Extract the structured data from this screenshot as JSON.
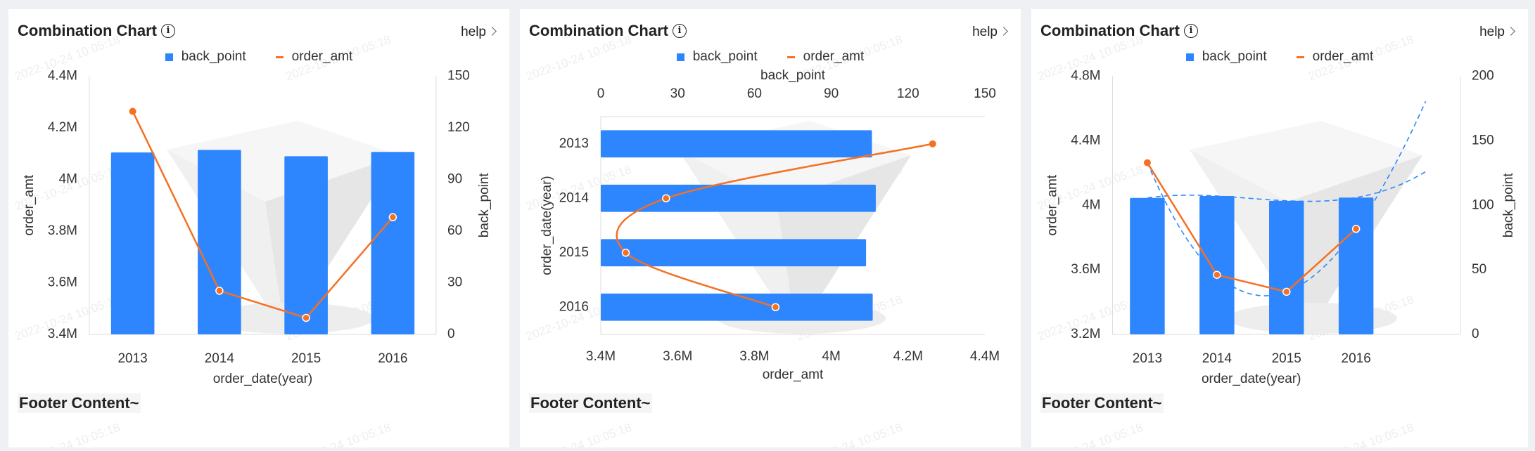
{
  "watermark": "2022-10-24 10:05:18",
  "colors": {
    "back_point": "#2e86ff",
    "order_amt": "#f57022",
    "trend": "#2e86ff",
    "axis": "#dcdcdc",
    "background": "#eef0f4"
  },
  "cards": [
    {
      "title": "Combination Chart",
      "info_icon": "info-circle-icon",
      "help": "help",
      "footer": "Footer Content~",
      "legend": [
        {
          "label": "back_point",
          "marker": "square"
        },
        {
          "label": "order_amt",
          "marker": "dash"
        }
      ]
    },
    {
      "title": "Combination Chart",
      "info_icon": "info-circle-icon",
      "help": "help",
      "footer": "Footer Content~",
      "legend": [
        {
          "label": "back_point",
          "marker": "square"
        },
        {
          "label": "order_amt",
          "marker": "dash"
        }
      ]
    },
    {
      "title": "Combination Chart",
      "info_icon": "info-circle-icon",
      "help": "help",
      "footer": "Footer Content~",
      "legend": [
        {
          "label": "back_point",
          "marker": "square"
        },
        {
          "label": "order_amt",
          "marker": "dash"
        }
      ]
    }
  ],
  "chart_data": [
    {
      "type": "bar+line",
      "orientation": "vertical",
      "title": "Combination Chart",
      "categories": [
        "2013",
        "2014",
        "2015",
        "2016"
      ],
      "xlabel": "order_date(year)",
      "ylabel_left": "order_amt",
      "ylabel_right": "back_point",
      "left_ylim": [
        3400000,
        4400000
      ],
      "left_ticks": [
        "3.4M",
        "3.6M",
        "3.8M",
        "4M",
        "4.2M",
        "4.4M"
      ],
      "right_ylim": [
        0,
        150
      ],
      "right_ticks": [
        "0",
        "30",
        "60",
        "90",
        "120",
        "150"
      ],
      "series": [
        {
          "name": "back_point",
          "type": "bar",
          "axis": "right",
          "values": [
            105.7,
            107.2,
            103.5,
            106.0
          ]
        },
        {
          "name": "order_amt",
          "type": "line",
          "axis": "left",
          "smooth": false,
          "values": [
            4264000,
            3569000,
            3464000,
            3854000
          ]
        }
      ],
      "legend": "top",
      "grid": false
    },
    {
      "type": "bar+line",
      "orientation": "horizontal",
      "title": "Combination Chart",
      "categories": [
        "2013",
        "2014",
        "2015",
        "2016"
      ],
      "ylabel": "order_date(year)",
      "xlabel_top": "back_point",
      "xlabel_bottom": "order_amt",
      "top_xlim": [
        0,
        150
      ],
      "top_ticks": [
        "0",
        "30",
        "60",
        "90",
        "120",
        "150"
      ],
      "bottom_xlim": [
        3400000,
        4400000
      ],
      "bottom_ticks": [
        "3.4M",
        "3.6M",
        "3.8M",
        "4M",
        "4.2M",
        "4.4M"
      ],
      "series": [
        {
          "name": "back_point",
          "type": "bar",
          "axis": "top",
          "values": [
            105.9,
            107.4,
            103.6,
            106.2
          ]
        },
        {
          "name": "order_amt",
          "type": "line",
          "axis": "bottom",
          "smooth": true,
          "values": [
            4264000,
            3570000,
            3465000,
            3855000
          ]
        }
      ],
      "legend": "top",
      "grid": false
    },
    {
      "type": "bar+line",
      "orientation": "vertical",
      "title": "Combination Chart",
      "categories": [
        "2013",
        "2014",
        "2015",
        "2016"
      ],
      "xlabel": "order_date(year)",
      "ylabel_left": "order_amt",
      "ylabel_right": "back_point",
      "left_ylim": [
        3200000,
        4800000
      ],
      "left_ticks": [
        "3.2M",
        "3.6M",
        "4M",
        "4.4M",
        "4.8M"
      ],
      "right_ylim": [
        0,
        200
      ],
      "right_ticks": [
        "0",
        "50",
        "100",
        "150",
        "200"
      ],
      "series": [
        {
          "name": "back_point",
          "type": "bar",
          "axis": "right",
          "values": [
            105.7,
            107.2,
            103.5,
            106.0
          ],
          "trendline": "polynomial"
        },
        {
          "name": "order_amt",
          "type": "line",
          "axis": "left",
          "smooth": false,
          "values": [
            4264000,
            3569000,
            3464000,
            3854000
          ],
          "trendline": "polynomial"
        }
      ],
      "legend": "top",
      "grid": false
    }
  ]
}
